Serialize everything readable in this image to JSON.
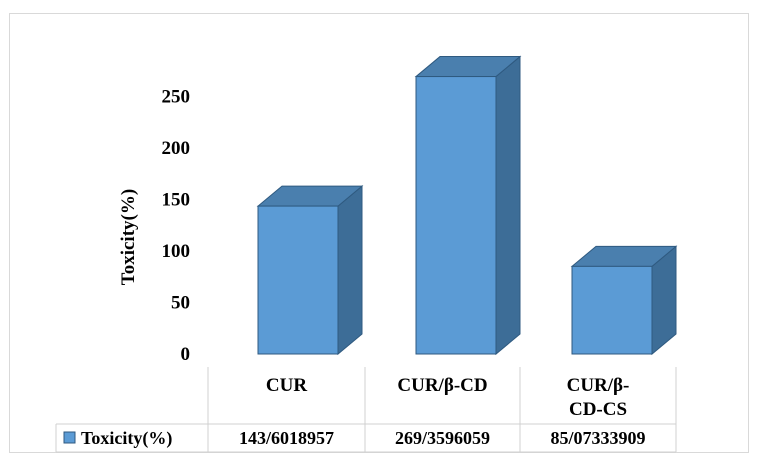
{
  "chart_data": {
    "type": "bar",
    "style": "3d-column with data table",
    "categories": [
      [
        "CUR"
      ],
      [
        "CUR/β-CD"
      ],
      [
        "CUR/β-",
        "CD-CS"
      ]
    ],
    "series": [
      {
        "name": "Toxicity(%)",
        "values": [
          143.6018957,
          269.3596059,
          85.07333909
        ],
        "table_labels": [
          "143/6018957",
          "269/3596059",
          "85/07333909"
        ],
        "color": "#5b9bd5"
      }
    ],
    "ylabel": "Toxicity(%)",
    "xlabel": "",
    "ylim": [
      0,
      250
    ],
    "yticks": [
      0,
      50,
      100,
      150,
      200,
      250
    ],
    "grid": false,
    "legend": "data-table-left"
  }
}
